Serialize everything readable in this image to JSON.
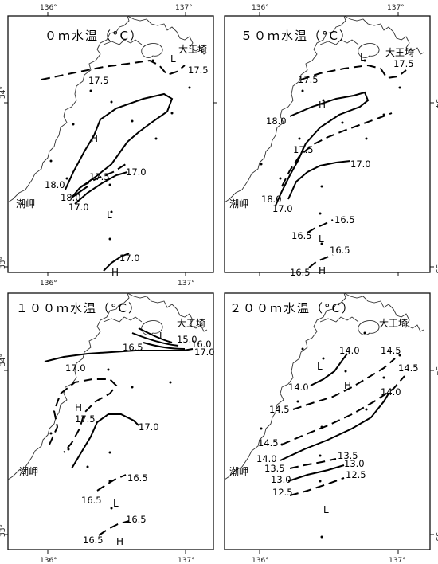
{
  "axis_labels": {
    "lon_136": "136°",
    "lon_137": "137°",
    "lat_34": "34°",
    "lat_33": "33°"
  },
  "places": {
    "cape_daiozaki": "大王埼",
    "cape_shiomisaki": "潮岬"
  },
  "panels": [
    {
      "id": "0m",
      "title": "０ｍ水温（°C）",
      "contour_labels": [
        "17.5",
        "17.5",
        "18.0",
        "18.0",
        "17.5",
        "17.0",
        "17.0",
        "17.0"
      ],
      "markers": [
        "L",
        "H",
        "L",
        "H"
      ]
    },
    {
      "id": "50m",
      "title": "５０ｍ水温（°C）",
      "contour_labels": [
        "17.5",
        "17.5",
        "18.0",
        "17.5",
        "17.0",
        "18.0",
        "17.0",
        "16.5",
        "16.5",
        "16.5",
        "16.5"
      ],
      "markers": [
        "L",
        "H",
        "L",
        "H"
      ]
    },
    {
      "id": "100m",
      "title": "１００ｍ水温（°C）",
      "contour_labels": [
        "15.0",
        "16.0",
        "16.5",
        "17.0",
        "17.0",
        "17.5",
        "17.0",
        "16.5",
        "16.5",
        "16.5",
        "16.5"
      ],
      "markers": [
        "L",
        "H",
        "L",
        "H"
      ]
    },
    {
      "id": "200m",
      "title": "２００ｍ水温（°C）",
      "contour_labels": [
        "14.0",
        "14.5",
        "14.5",
        "14.0",
        "14.0",
        "14.5",
        "14.5",
        "14.0",
        "13.5",
        "13.5",
        "13.0",
        "13.0",
        "12.5",
        "12.5"
      ],
      "markers": [
        "L",
        "H",
        "L"
      ]
    }
  ]
}
